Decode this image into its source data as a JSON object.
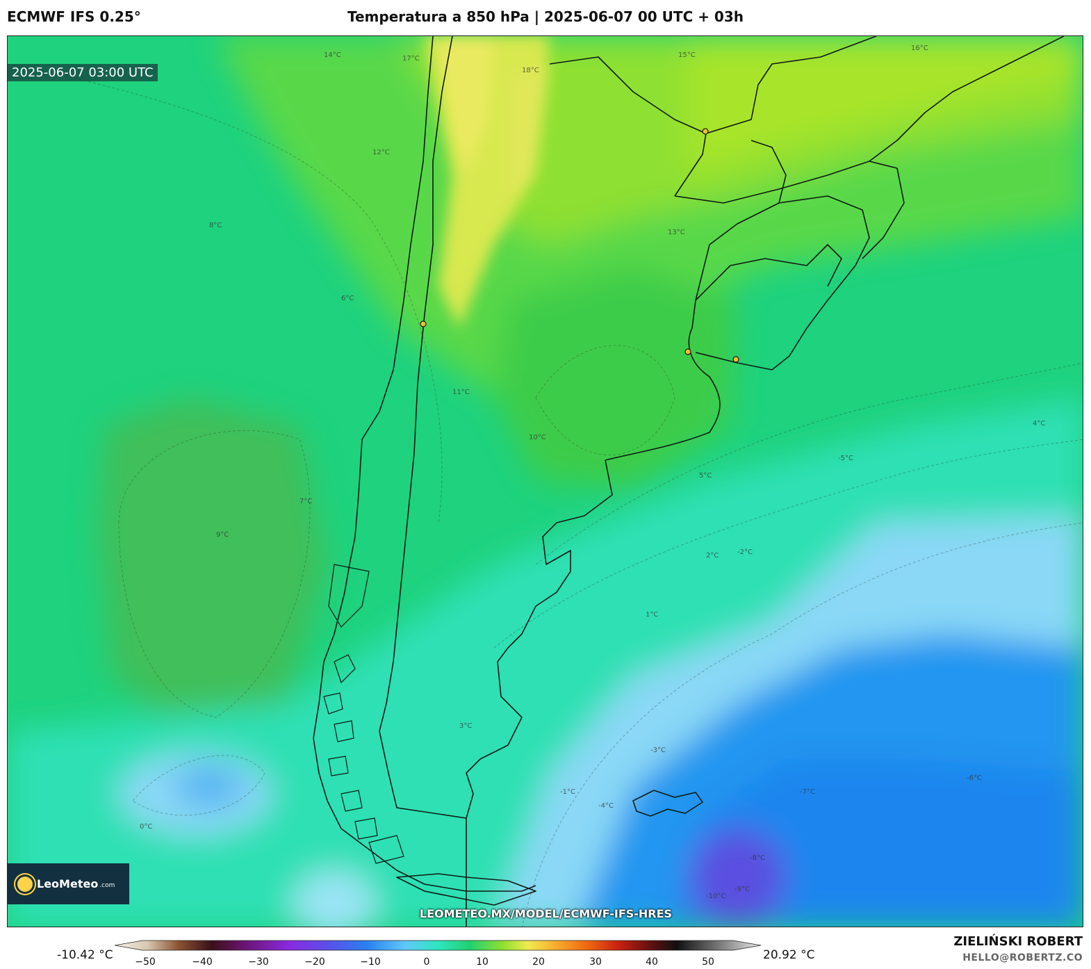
{
  "header": {
    "model": "ECMWF IFS 0.25°",
    "title": "Temperatura a 850 hPa | 2025-06-07 00 UTC + 03h"
  },
  "map": {
    "timestamp": "2025-06-07 03:00 UTC",
    "url": "LEOMETEO.MX/MODEL/ECMWF-IFS-HRES",
    "logo_text": "LeoMeteo",
    "logo_suffix": ".com",
    "isotherms": [
      "17°C",
      "18°C",
      "15°C",
      "14°C",
      "13°C",
      "12°C",
      "11°C",
      "10°C",
      "9°C",
      "8°C",
      "7°C",
      "6°C",
      "5°C",
      "4°C",
      "3°C",
      "2°C",
      "1°C",
      "0°C",
      "-1°C",
      "-2°C",
      "-3°C",
      "-4°C",
      "-5°C",
      "-6°C",
      "-7°C",
      "-8°C",
      "-9°C",
      "-10°C",
      "16°C"
    ]
  },
  "colorbar": {
    "min_label": "-10.42 °C",
    "max_label": "20.92 °C",
    "ticks": [
      "−50",
      "−40",
      "−30",
      "−20",
      "−10",
      "0",
      "10",
      "20",
      "30",
      "40",
      "50"
    ]
  },
  "footer": {
    "author": "ZIELIŃSKI ROBERT",
    "email": "HELLO@ROBERTZ.CO"
  },
  "colors": {
    "warm_yellow": "#e8ea50",
    "green": "#22c850",
    "teal": "#2ee6c0",
    "light_blue": "#8ad8f6",
    "blue": "#1f8ef2",
    "purple": "#5a50e0"
  }
}
